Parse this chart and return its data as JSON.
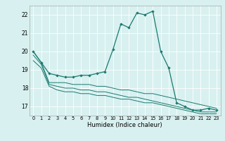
{
  "xlabel": "Humidex (Indice chaleur)",
  "bg_color": "#d8f0f0",
  "line_color": "#1a7a6e",
  "grid_color": "#ffffff",
  "ylim": [
    16.5,
    22.5
  ],
  "xlim": [
    -0.5,
    23.5
  ],
  "yticks": [
    17,
    18,
    19,
    20,
    21,
    22
  ],
  "xticks": [
    0,
    1,
    2,
    3,
    4,
    5,
    6,
    7,
    8,
    9,
    10,
    11,
    12,
    13,
    14,
    15,
    16,
    17,
    18,
    19,
    20,
    21,
    22,
    23
  ],
  "line1_x": [
    0,
    1,
    2,
    3,
    4,
    5,
    6,
    7,
    8,
    9,
    10,
    11,
    12,
    13,
    14,
    15,
    16,
    17,
    18,
    19,
    20,
    21,
    22,
    23
  ],
  "line1_y": [
    20.0,
    19.4,
    18.8,
    18.7,
    18.6,
    18.6,
    18.7,
    18.7,
    18.8,
    18.9,
    20.1,
    21.5,
    21.3,
    22.1,
    22.0,
    22.2,
    20.0,
    19.1,
    17.2,
    17.0,
    16.8,
    16.8,
    16.9,
    16.8
  ],
  "line2_x": [
    0,
    1,
    2,
    3,
    4,
    5,
    6,
    7,
    8,
    9,
    10,
    11,
    12,
    13,
    14,
    15,
    16,
    17,
    18,
    19,
    20,
    21,
    22,
    23
  ],
  "line2_y": [
    20.0,
    19.4,
    18.3,
    18.3,
    18.3,
    18.2,
    18.2,
    18.2,
    18.1,
    18.1,
    18.0,
    17.9,
    17.9,
    17.8,
    17.7,
    17.7,
    17.6,
    17.5,
    17.4,
    17.3,
    17.2,
    17.1,
    17.0,
    16.9
  ],
  "line3_x": [
    0,
    1,
    2,
    3,
    4,
    5,
    6,
    7,
    8,
    9,
    10,
    11,
    12,
    13,
    14,
    15,
    16,
    17,
    18,
    19,
    20,
    21,
    22,
    23
  ],
  "line3_y": [
    19.8,
    19.3,
    18.2,
    18.1,
    18.0,
    18.0,
    17.9,
    17.9,
    17.8,
    17.8,
    17.7,
    17.6,
    17.5,
    17.5,
    17.4,
    17.3,
    17.2,
    17.1,
    17.0,
    16.9,
    16.8,
    16.7,
    16.7,
    16.7
  ],
  "line4_x": [
    0,
    1,
    2,
    3,
    4,
    5,
    6,
    7,
    8,
    9,
    10,
    11,
    12,
    13,
    14,
    15,
    16,
    17,
    18,
    19,
    20,
    21,
    22,
    23
  ],
  "line4_y": [
    19.5,
    19.1,
    18.1,
    17.9,
    17.8,
    17.8,
    17.7,
    17.7,
    17.6,
    17.6,
    17.5,
    17.4,
    17.4,
    17.3,
    17.2,
    17.2,
    17.1,
    17.0,
    16.9,
    16.8,
    16.7,
    16.6,
    16.6,
    16.6
  ]
}
